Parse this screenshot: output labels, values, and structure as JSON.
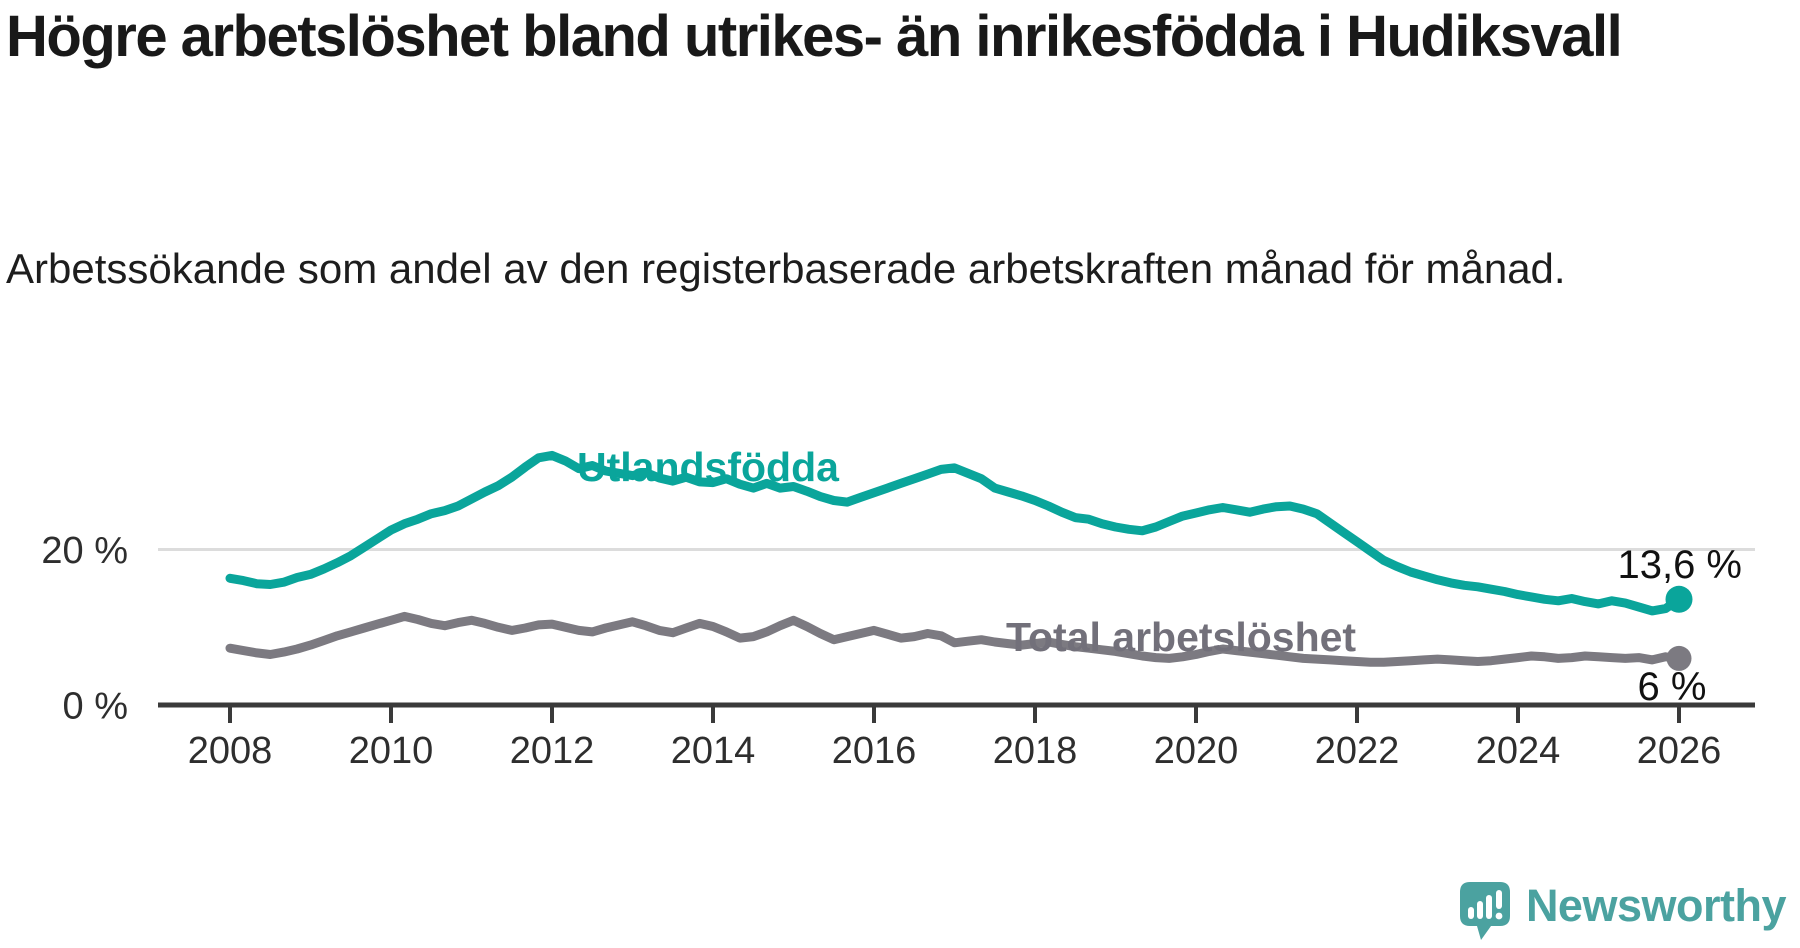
{
  "header": {
    "title": "Högre arbetslöshet bland utrikes- än inrikesfödda i Hudiksvall",
    "subtitle": "Arbetssökande som andel av den registerbaserade arbetskraften månad för månad."
  },
  "footer": {
    "brand": "Newsworthy",
    "logo_icon": "speech-bubble-bar-chart-icon",
    "brand_color": "#4ba2a0"
  },
  "chart_data": {
    "type": "line",
    "title": "",
    "xlabel": "",
    "ylabel": "",
    "x_start_year": 2008,
    "x_step_years": 0.166667,
    "x_ticks": [
      "2008",
      "2010",
      "2012",
      "2014",
      "2016",
      "2018",
      "2020",
      "2022",
      "2024",
      "2026"
    ],
    "y_ticks": [
      {
        "value": 0,
        "label": "0 %"
      },
      {
        "value": 20,
        "label": "20 %"
      }
    ],
    "ylim": [
      0,
      35.5
    ],
    "xlim": [
      2007.1,
      2026.95
    ],
    "grid": "horizontal-20-only",
    "legend_position": "inline-labels-on-lines",
    "axis_color": "#3a3a3a",
    "gridline_color": "#dcdcdc",
    "series": [
      {
        "name": "Utlandsfödda",
        "color": "#0aa59b",
        "end_value": 13.6,
        "end_label": "13,6 %",
        "values": [
          16.3,
          16.0,
          15.6,
          15.5,
          15.8,
          16.4,
          16.8,
          17.5,
          18.3,
          19.2,
          20.3,
          21.4,
          22.5,
          23.3,
          23.9,
          24.6,
          25.0,
          25.6,
          26.5,
          27.4,
          28.2,
          29.3,
          30.6,
          31.8,
          32.1,
          31.4,
          30.4,
          30.8,
          30.1,
          29.8,
          29.5,
          29.9,
          29.2,
          28.8,
          29.3,
          28.7,
          28.6,
          29.1,
          28.4,
          27.9,
          28.5,
          27.9,
          28.1,
          27.5,
          26.8,
          26.3,
          26.1,
          26.7,
          27.3,
          27.9,
          28.5,
          29.1,
          29.7,
          30.3,
          30.5,
          29.8,
          29.1,
          27.9,
          27.4,
          26.9,
          26.3,
          25.6,
          24.8,
          24.1,
          23.9,
          23.3,
          22.9,
          22.6,
          22.4,
          22.9,
          23.6,
          24.3,
          24.7,
          25.1,
          25.4,
          25.1,
          24.8,
          25.2,
          25.5,
          25.6,
          25.2,
          24.6,
          23.4,
          22.2,
          21.0,
          19.8,
          18.6,
          17.8,
          17.1,
          16.6,
          16.1,
          15.7,
          15.4,
          15.2,
          14.9,
          14.6,
          14.2,
          13.9,
          13.6,
          13.4,
          13.7,
          13.3,
          13.0,
          13.4,
          13.1,
          12.6,
          12.1,
          12.4,
          13.6
        ]
      },
      {
        "name": "Total arbetslöshet",
        "color": "#7c7a81",
        "end_value": 6,
        "end_label": "6 %",
        "values": [
          7.3,
          7.0,
          6.7,
          6.5,
          6.8,
          7.2,
          7.7,
          8.3,
          8.9,
          9.4,
          9.9,
          10.4,
          10.9,
          11.4,
          11.0,
          10.5,
          10.2,
          10.6,
          10.9,
          10.5,
          10.0,
          9.6,
          9.9,
          10.3,
          10.4,
          10.0,
          9.6,
          9.4,
          9.9,
          10.3,
          10.7,
          10.2,
          9.6,
          9.3,
          9.9,
          10.5,
          10.1,
          9.4,
          8.6,
          8.8,
          9.4,
          10.2,
          10.9,
          10.1,
          9.2,
          8.4,
          8.8,
          9.2,
          9.6,
          9.1,
          8.6,
          8.8,
          9.2,
          8.9,
          8.0,
          8.2,
          8.4,
          8.1,
          7.9,
          7.7,
          7.9,
          8.1,
          7.8,
          7.5,
          7.3,
          7.1,
          6.9,
          6.6,
          6.3,
          6.1,
          6.0,
          6.2,
          6.5,
          6.9,
          7.2,
          7.0,
          6.8,
          6.6,
          6.4,
          6.2,
          6.0,
          5.9,
          5.8,
          5.7,
          5.6,
          5.5,
          5.5,
          5.6,
          5.7,
          5.8,
          5.9,
          5.8,
          5.7,
          5.6,
          5.7,
          5.9,
          6.1,
          6.3,
          6.2,
          6.0,
          6.1,
          6.3,
          6.2,
          6.1,
          6.0,
          6.1,
          5.8,
          6.2,
          6.0
        ]
      }
    ]
  }
}
